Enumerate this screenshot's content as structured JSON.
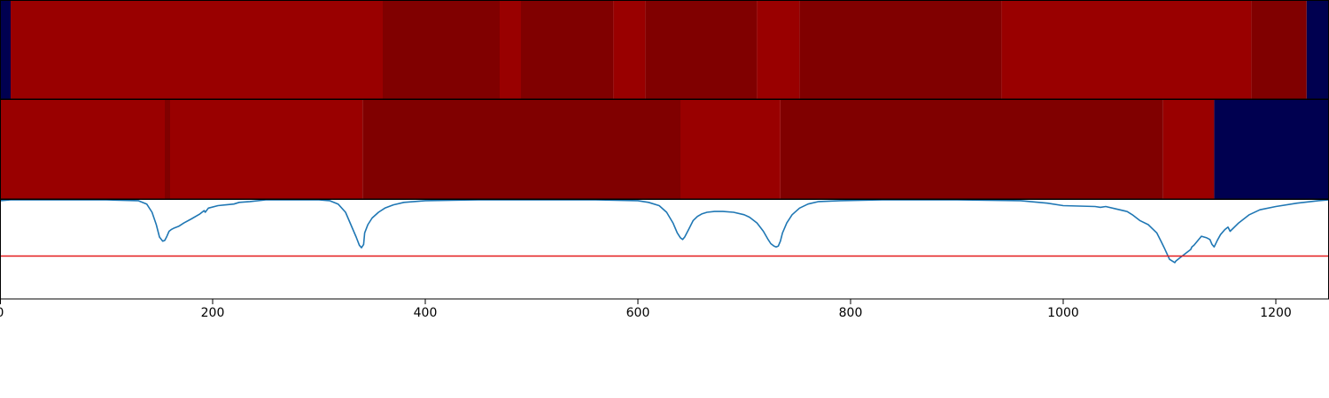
{
  "chart_data": [
    {
      "type": "heatmap",
      "title": "",
      "xlim": [
        0,
        1250
      ],
      "colors": {
        "dark_red": "#800000",
        "red": "#990000",
        "navy": "#000050"
      },
      "segments": [
        {
          "x0": 0,
          "x1": 10,
          "level": "navy"
        },
        {
          "x0": 10,
          "x1": 360,
          "level": "red"
        },
        {
          "x0": 360,
          "x1": 470,
          "level": "dark_red"
        },
        {
          "x0": 470,
          "x1": 490,
          "level": "red"
        },
        {
          "x0": 490,
          "x1": 577,
          "level": "dark_red"
        },
        {
          "x0": 577,
          "x1": 607,
          "level": "red"
        },
        {
          "x0": 607,
          "x1": 712,
          "level": "dark_red"
        },
        {
          "x0": 712,
          "x1": 752,
          "level": "red"
        },
        {
          "x0": 752,
          "x1": 942,
          "level": "dark_red"
        },
        {
          "x0": 942,
          "x1": 1177,
          "level": "red"
        },
        {
          "x0": 1177,
          "x1": 1229,
          "level": "dark_red"
        },
        {
          "x0": 1229,
          "x1": 1250,
          "level": "navy"
        }
      ]
    },
    {
      "type": "heatmap",
      "title": "",
      "xlim": [
        0,
        1250
      ],
      "colors": {
        "dark_red": "#800000",
        "red": "#990000",
        "navy": "#000050"
      },
      "segments": [
        {
          "x0": 0,
          "x1": 155,
          "level": "red"
        },
        {
          "x0": 155,
          "x1": 160,
          "level": "dark_red"
        },
        {
          "x0": 160,
          "x1": 341,
          "level": "red"
        },
        {
          "x0": 341,
          "x1": 640,
          "level": "dark_red"
        },
        {
          "x0": 640,
          "x1": 734,
          "level": "red"
        },
        {
          "x0": 734,
          "x1": 1094,
          "level": "dark_red"
        },
        {
          "x0": 1094,
          "x1": 1142,
          "level": "red"
        },
        {
          "x0": 1142,
          "x1": 1250,
          "level": "navy"
        }
      ]
    },
    {
      "type": "line",
      "title": "",
      "xlabel": "",
      "ylabel": "",
      "xlim": [
        0,
        1250
      ],
      "ylim": [
        -0.2,
        1.0
      ],
      "x_ticks": [
        0,
        200,
        400,
        600,
        800,
        1000,
        1200
      ],
      "grid": false,
      "series": [
        {
          "color": "#1f77b4",
          "x": [
            0,
            10,
            50,
            100,
            130,
            138,
            143,
            147,
            150,
            153,
            155,
            157,
            159,
            161,
            164,
            168,
            173,
            180,
            188,
            192,
            193,
            196,
            205,
            220,
            225,
            235,
            250,
            300,
            310,
            318,
            325,
            330,
            335,
            338,
            340,
            342,
            343,
            346,
            350,
            356,
            362,
            370,
            380,
            400,
            450,
            500,
            560,
            600,
            610,
            620,
            627,
            633,
            637,
            640,
            642,
            644,
            648,
            652,
            656,
            660,
            665,
            672,
            680,
            690,
            700,
            705,
            712,
            718,
            722,
            725,
            728,
            730,
            732,
            734,
            736,
            740,
            745,
            752,
            760,
            770,
            790,
            830,
            900,
            960,
            985,
            1000,
            1030,
            1035,
            1040,
            1050,
            1060,
            1065,
            1072,
            1080,
            1088,
            1092,
            1095,
            1100,
            1105,
            1106,
            1110,
            1120,
            1121,
            1123,
            1130,
            1135,
            1138,
            1140,
            1142,
            1145,
            1148,
            1152,
            1155,
            1157,
            1165,
            1175,
            1185,
            1200,
            1220,
            1240,
            1250
          ],
          "y": [
            0.99,
            1.0,
            1.0,
            1.0,
            0.99,
            0.95,
            0.85,
            0.7,
            0.55,
            0.5,
            0.51,
            0.56,
            0.62,
            0.64,
            0.66,
            0.68,
            0.72,
            0.77,
            0.83,
            0.87,
            0.85,
            0.9,
            0.93,
            0.95,
            0.97,
            0.98,
            1.0,
            1.0,
            0.99,
            0.95,
            0.85,
            0.7,
            0.55,
            0.45,
            0.42,
            0.46,
            0.6,
            0.7,
            0.78,
            0.85,
            0.9,
            0.94,
            0.97,
            0.99,
            1.0,
            1.0,
            1.0,
            0.99,
            0.97,
            0.93,
            0.85,
            0.72,
            0.6,
            0.54,
            0.52,
            0.55,
            0.65,
            0.75,
            0.8,
            0.83,
            0.85,
            0.86,
            0.86,
            0.85,
            0.82,
            0.79,
            0.72,
            0.62,
            0.53,
            0.47,
            0.44,
            0.43,
            0.44,
            0.5,
            0.6,
            0.72,
            0.82,
            0.9,
            0.95,
            0.98,
            0.99,
            1.0,
            1.0,
            0.99,
            0.96,
            0.93,
            0.92,
            0.91,
            0.92,
            0.89,
            0.86,
            0.82,
            0.75,
            0.7,
            0.6,
            0.5,
            0.42,
            0.28,
            0.24,
            0.26,
            0.3,
            0.4,
            0.43,
            0.45,
            0.56,
            0.54,
            0.52,
            0.46,
            0.43,
            0.51,
            0.58,
            0.64,
            0.67,
            0.62,
            0.72,
            0.82,
            0.88,
            0.92,
            0.96,
            0.99,
            1.0
          ]
        },
        {
          "color": "#e41a1c",
          "x": [
            0,
            1250
          ],
          "y": [
            0.32,
            0.32
          ]
        }
      ]
    }
  ]
}
